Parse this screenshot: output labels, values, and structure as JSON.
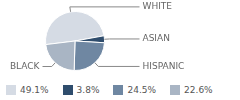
{
  "chart_data": {
    "type": "pie",
    "categories": [
      "WHITE",
      "ASIAN",
      "HISPANIC",
      "BLACK"
    ],
    "values": [
      49.1,
      3.8,
      24.5,
      22.6
    ],
    "value_labels": [
      "49.1%",
      "3.8%",
      "24.5%",
      "22.6%"
    ],
    "colors": [
      "#d5dbe4",
      "#2f4d6d",
      "#6f87a2",
      "#a9b5c4"
    ]
  }
}
